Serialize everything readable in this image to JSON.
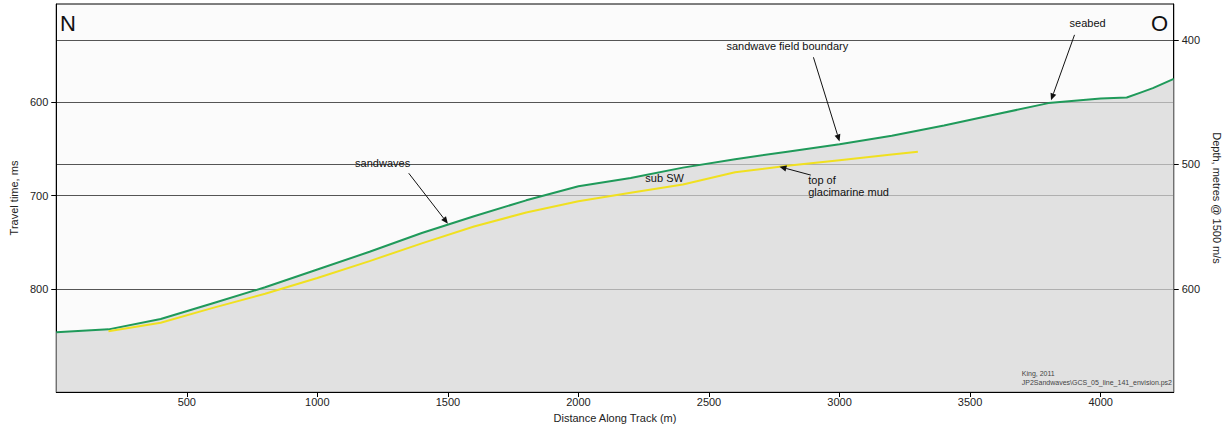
{
  "chart_data": {
    "type": "line",
    "x_label": "Distance Along Track (m)",
    "y_label": "Travel time, ms",
    "y2_label": "Depth, metres @ 1500 m/s",
    "xlim": [
      0,
      4280
    ],
    "xticks": [
      500,
      1000,
      1500,
      2000,
      2500,
      3000,
      3500,
      4000
    ],
    "ylim": [
      910,
      495
    ],
    "yticks": [
      600,
      700,
      800
    ],
    "y2lim": [
      682.5,
      371.25
    ],
    "y2ticks": [
      400,
      500,
      600
    ],
    "grid": true,
    "corner_labels": {
      "left": "N",
      "right": "O"
    },
    "series": [
      {
        "color": "#1f9a5a",
        "line_style": "solid",
        "x": [
          0,
          200,
          400,
          600,
          800,
          1000,
          1200,
          1400,
          1600,
          1800,
          2000,
          2200,
          2400,
          2600,
          2800,
          3000,
          3200,
          3400,
          3600,
          3800,
          4000,
          4100,
          4150,
          4200,
          4280
        ],
        "values": [
          846,
          843,
          832,
          815,
          798,
          779,
          760,
          740,
          722,
          705,
          690,
          681,
          670,
          661,
          653,
          645,
          636,
          625,
          613,
          601,
          596,
          595,
          590,
          585,
          575
        ]
      },
      {
        "color": "#f0e020",
        "line_style": "solid",
        "x": [
          200,
          400,
          600,
          800,
          1000,
          1200,
          1400,
          1600,
          1800,
          2000,
          2200,
          2400,
          2600,
          2800,
          3000,
          3200,
          3300
        ],
        "values": [
          845,
          836,
          820,
          805,
          788,
          770,
          751,
          733,
          718,
          706,
          697,
          688,
          675,
          668,
          662,
          656,
          653
        ]
      }
    ],
    "annotations": [
      [
        "seabed"
      ],
      [
        "sandwave field boundary"
      ],
      [
        "sandwaves"
      ],
      [
        "sub SW"
      ],
      [
        "top of",
        "glacimarine mud"
      ]
    ],
    "credit": [
      "King, 2011",
      "JP2Sandwaves\\GCS_05_line_141_envision.ps2"
    ]
  }
}
